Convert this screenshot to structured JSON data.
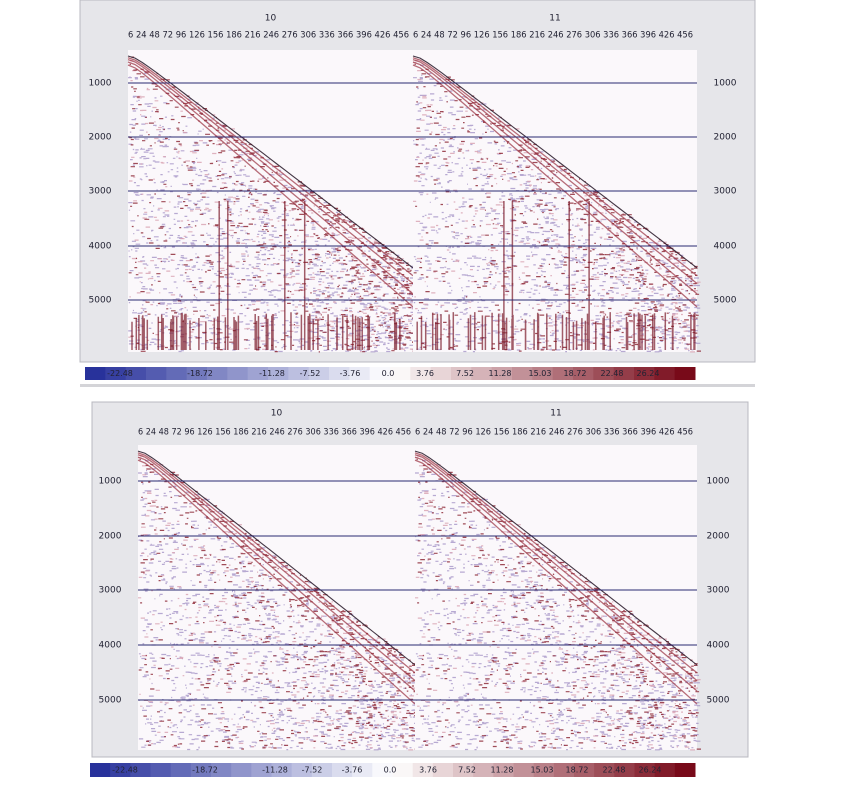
{
  "panels": [
    {
      "gathers": [
        {
          "label": "10",
          "offsets": "6 24 48 72 96 126 156 186 216 246 276 306 336 366 396 426 456"
        },
        {
          "label": "11",
          "offsets": "6 24 48 72 96 126 156 186 216 246 276 306 336 366 396 426 456"
        }
      ],
      "depth_labels": [
        "1000",
        "2000",
        "3000",
        "4000",
        "5000"
      ],
      "colorbar": [
        "-22.48",
        "-18.72",
        "-11.28",
        "-7.52",
        "-3.76",
        "0.0",
        "3.76",
        "7.52",
        "11.28",
        "15.03",
        "18.72",
        "22.48",
        "26.24"
      ]
    },
    {
      "gathers": [
        {
          "label": "10",
          "offsets": "6 24 48 72 96 126 156 186 216 246 276 306 336 366 396 426 456"
        },
        {
          "label": "11",
          "offsets": "6 24 48 72 96 126 156 186 216 246 276 306 336 366 396 426 456"
        }
      ],
      "depth_labels": [
        "1000",
        "2000",
        "3000",
        "4000",
        "5000"
      ],
      "colorbar": [
        "-22.48",
        "-18.72",
        "-11.28",
        "-7.52",
        "-3.76",
        "0.0",
        "3.76",
        "7.52",
        "11.28",
        "15.03",
        "18.72",
        "22.48",
        "26.24"
      ]
    }
  ]
}
